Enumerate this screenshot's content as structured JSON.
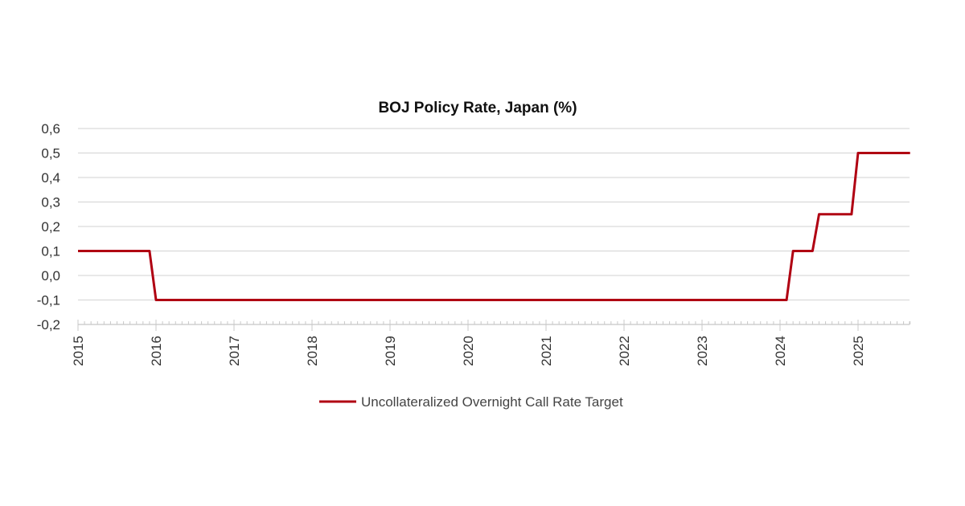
{
  "chart_data": {
    "type": "line",
    "title": "BOJ Policy Rate, Japan (%)",
    "xlabel": "",
    "ylabel": "",
    "ylim": [
      -0.2,
      0.6
    ],
    "yticks": [
      "-0,2",
      "-0,1",
      "0,0",
      "0,1",
      "0,2",
      "0,3",
      "0,4",
      "0,5",
      "0,6"
    ],
    "ytick_values": [
      -0.2,
      -0.1,
      0.0,
      0.1,
      0.2,
      0.3,
      0.4,
      0.5,
      0.6
    ],
    "xlim": [
      "2015-01",
      "2025-09"
    ],
    "xticks": [
      "2015",
      "2016",
      "2017",
      "2018",
      "2019",
      "2020",
      "2021",
      "2022",
      "2023",
      "2024",
      "2025"
    ],
    "grid": true,
    "legend_position": "bottom",
    "series": [
      {
        "name": "Uncollateralized Overnight Call Rate Target",
        "color": "#b00012",
        "points": [
          {
            "x": "2015-01",
            "y": 0.1
          },
          {
            "x": "2015-12",
            "y": 0.1
          },
          {
            "x": "2016-01",
            "y": -0.1
          },
          {
            "x": "2024-02",
            "y": -0.1
          },
          {
            "x": "2024-03",
            "y": 0.1
          },
          {
            "x": "2024-06",
            "y": 0.1
          },
          {
            "x": "2024-07",
            "y": 0.25
          },
          {
            "x": "2024-12",
            "y": 0.25
          },
          {
            "x": "2025-01",
            "y": 0.5
          },
          {
            "x": "2025-09",
            "y": 0.5
          }
        ]
      }
    ]
  }
}
